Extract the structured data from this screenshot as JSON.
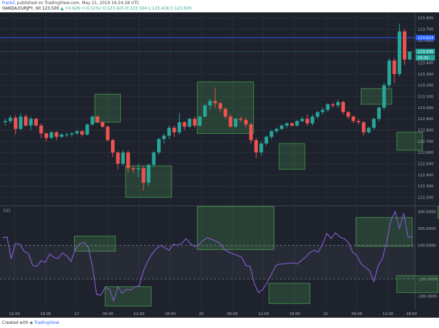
{
  "header": {
    "author": "frankC",
    "published": "published on TradingView.com, May 21, 2019 16:24:28 UTC",
    "symbol": "OANDA:EURJPY, 60",
    "price": "123.500",
    "change": "▲ +0.629 (+0.51%)",
    "ohlc": "O:123.425 H:123.504 L:123.418 C:123.500"
  },
  "footer": {
    "created": "Created with",
    "brand": "TradingView"
  },
  "colors": {
    "bg": "#1e222d",
    "up": "#26a69a",
    "down": "#ef5350",
    "line": "#7e57c2",
    "zone": "#4caf50",
    "hline": "#2962ff",
    "grid": "#2a2e39"
  },
  "chart_data": [
    {
      "type": "candlestick",
      "title": "",
      "ylim": [
        122.13,
        123.85
      ],
      "y_ticks": [
        "123.800",
        "123.700",
        "123.600",
        "123.500",
        "123.400",
        "123.300",
        "123.200",
        "123.100",
        "123.000",
        "122.900",
        "122.800",
        "122.700",
        "122.600",
        "122.500",
        "122.400",
        "122.300",
        "122.200"
      ],
      "price_labels": [
        {
          "text": "123.624",
          "value": 123.624,
          "color": "#2962ff"
        },
        {
          "text": "123.500",
          "value": 123.5,
          "color": "#26a69a"
        },
        {
          "text": "25:31",
          "value": 123.445,
          "color": "#26a69a"
        }
      ],
      "horizontal_line": 123.624,
      "current_price_line": 123.5,
      "candles": [
        [
          122.87,
          122.88,
          122.84,
          122.9
        ],
        [
          122.88,
          122.91,
          122.86,
          122.93
        ],
        [
          122.91,
          122.81,
          122.76,
          122.93
        ],
        [
          122.81,
          122.92,
          122.8,
          122.95
        ],
        [
          122.92,
          122.84,
          122.83,
          122.94
        ],
        [
          122.84,
          122.9,
          122.8,
          122.92
        ],
        [
          122.9,
          122.84,
          122.83,
          122.91
        ],
        [
          122.84,
          122.77,
          122.73,
          122.86
        ],
        [
          122.77,
          122.73,
          122.7,
          122.78
        ],
        [
          122.73,
          122.78,
          122.72,
          122.79
        ],
        [
          122.78,
          122.74,
          122.71,
          122.79
        ],
        [
          122.74,
          122.76,
          122.73,
          122.77
        ],
        [
          122.76,
          122.76,
          122.74,
          122.78
        ],
        [
          122.76,
          122.77,
          122.74,
          122.78
        ],
        [
          122.77,
          122.79,
          122.76,
          122.8
        ],
        [
          122.79,
          122.76,
          122.74,
          122.8
        ],
        [
          122.76,
          122.85,
          122.75,
          122.86
        ],
        [
          122.85,
          122.92,
          122.84,
          122.93
        ],
        [
          122.92,
          122.87,
          122.86,
          122.93
        ],
        [
          122.87,
          122.83,
          122.82,
          122.88
        ],
        [
          122.83,
          122.71,
          122.7,
          122.84
        ],
        [
          122.71,
          122.6,
          122.56,
          122.72
        ],
        [
          122.6,
          122.5,
          122.45,
          122.61
        ],
        [
          122.5,
          122.6,
          122.48,
          122.62
        ],
        [
          122.6,
          122.46,
          122.42,
          122.62
        ],
        [
          122.46,
          122.45,
          122.42,
          122.48
        ],
        [
          122.45,
          122.46,
          122.38,
          122.5
        ],
        [
          122.46,
          122.33,
          122.26,
          122.48
        ],
        [
          122.33,
          122.49,
          122.3,
          122.5
        ],
        [
          122.49,
          122.6,
          122.47,
          122.61
        ],
        [
          122.6,
          122.72,
          122.58,
          122.73
        ],
        [
          122.72,
          122.75,
          122.68,
          122.77
        ],
        [
          122.75,
          122.82,
          122.72,
          122.84
        ],
        [
          122.82,
          122.78,
          122.74,
          122.84
        ],
        [
          122.78,
          122.87,
          122.76,
          122.95
        ],
        [
          122.87,
          122.83,
          122.8,
          122.88
        ],
        [
          122.83,
          122.9,
          122.82,
          122.91
        ],
        [
          122.9,
          122.84,
          122.82,
          122.92
        ],
        [
          122.84,
          122.92,
          122.83,
          122.93
        ],
        [
          122.92,
          123.02,
          122.91,
          123.03
        ],
        [
          123.02,
          123.06,
          122.98,
          123.08
        ],
        [
          123.06,
          123.04,
          123.0,
          123.18
        ],
        [
          123.04,
          122.99,
          122.96,
          123.05
        ],
        [
          122.99,
          122.92,
          122.9,
          123.0
        ],
        [
          122.92,
          122.83,
          122.82,
          122.94
        ],
        [
          122.83,
          122.9,
          122.82,
          122.91
        ],
        [
          122.9,
          122.89,
          122.87,
          122.92
        ],
        [
          122.89,
          122.85,
          122.82,
          122.91
        ],
        [
          122.85,
          122.71,
          122.68,
          122.87
        ],
        [
          122.71,
          122.6,
          122.55,
          122.73
        ],
        [
          122.6,
          122.68,
          122.57,
          122.7
        ],
        [
          122.68,
          122.74,
          122.66,
          122.75
        ],
        [
          122.74,
          122.79,
          122.72,
          122.8
        ],
        [
          122.79,
          122.81,
          122.77,
          122.82
        ],
        [
          122.81,
          122.84,
          122.8,
          122.85
        ],
        [
          122.84,
          122.86,
          122.82,
          122.87
        ],
        [
          122.86,
          122.84,
          122.83,
          122.87
        ],
        [
          122.84,
          122.88,
          122.83,
          122.89
        ],
        [
          122.88,
          122.9,
          122.87,
          122.92
        ],
        [
          122.9,
          122.86,
          122.84,
          122.94
        ],
        [
          122.86,
          122.92,
          122.84,
          122.94
        ],
        [
          122.92,
          122.96,
          122.9,
          122.97
        ],
        [
          122.96,
          122.98,
          122.94,
          123.0
        ],
        [
          122.98,
          123.03,
          122.96,
          123.04
        ],
        [
          123.03,
          123.02,
          123.0,
          123.05
        ],
        [
          123.02,
          123.05,
          123.0,
          123.07
        ],
        [
          123.05,
          122.96,
          122.94,
          123.06
        ],
        [
          122.96,
          122.92,
          122.9,
          122.97
        ],
        [
          122.92,
          122.88,
          122.86,
          122.93
        ],
        [
          122.88,
          122.87,
          122.85,
          122.9
        ],
        [
          122.87,
          122.78,
          122.75,
          122.88
        ],
        [
          122.78,
          122.82,
          122.77,
          122.83
        ],
        [
          122.82,
          122.9,
          122.8,
          122.91
        ],
        [
          122.9,
          123.0,
          122.88,
          123.01
        ],
        [
          123.0,
          123.2,
          122.98,
          123.22
        ],
        [
          123.2,
          123.42,
          123.18,
          123.44
        ],
        [
          123.42,
          123.3,
          123.22,
          123.44
        ],
        [
          123.3,
          123.68,
          123.28,
          123.75
        ],
        [
          123.68,
          123.43,
          123.38,
          123.7
        ],
        [
          123.43,
          123.5,
          123.42,
          123.5
        ]
      ],
      "zones": [
        {
          "i0": 18,
          "i1": 22,
          "y0": 122.87,
          "y1": 123.12
        },
        {
          "i0": 24,
          "i1": 32,
          "y0": 122.2,
          "y1": 122.48
        },
        {
          "i0": 38,
          "i1": 48,
          "y0": 122.77,
          "y1": 123.23
        },
        {
          "i0": 54,
          "i1": 58,
          "y0": 122.45,
          "y1": 122.68
        },
        {
          "i0": 70,
          "i1": 75,
          "y0": 123.03,
          "y1": 123.17
        },
        {
          "i0": 77,
          "i1": 81,
          "y0": 122.62,
          "y1": 122.78
        },
        {
          "i0": 86,
          "i1": 91,
          "y0": 123.52,
          "y1": 123.73
        }
      ]
    },
    {
      "type": "line",
      "title": "CCI",
      "ylim": [
        -280,
        330
      ],
      "y_ticks": [
        "300.0000",
        "200.0000",
        "100.0000",
        "-100.0000",
        "-200.0000"
      ],
      "bands": [
        100,
        -100
      ],
      "series": [
        {
          "values": [
            145,
            150,
            20,
            112,
            107,
            65,
            52,
            -18,
            -25,
            10,
            -2,
            50,
            28,
            22,
            55,
            38,
            5,
            75,
            108,
            118,
            90,
            -20,
            -190,
            -195,
            -150,
            -160,
            -230,
            -145,
            -185,
            -160,
            -165,
            -145,
            -140,
            -50,
            5,
            50,
            80,
            100,
            85,
            70,
            108,
            100,
            112,
            140,
            110,
            92,
            105,
            130,
            145,
            135,
            125,
            110,
            75,
            60,
            50,
            40,
            30,
            -20,
            -25,
            -130,
            -180,
            -160,
            -120,
            -70,
            -20,
            -10,
            -10,
            -5,
            -5,
            -10,
            10,
            30,
            58,
            70,
            60,
            110,
            170,
            140,
            175,
            150,
            140,
            120,
            60,
            40,
            -10,
            -30,
            -50,
            -115,
            -20,
            20,
            120,
            250,
            300,
            200,
            290,
            150,
            148
          ]
        }
      ],
      "zones": [
        {
          "i0": 14,
          "i1": 21,
          "y0": 65,
          "y1": 155
        },
        {
          "i0": 20,
          "i1": 28,
          "y0": -260,
          "y1": -145
        },
        {
          "i0": 38,
          "i1": 52,
          "y0": 75,
          "y1": 330
        },
        {
          "i0": 52,
          "i1": 59,
          "y0": -245,
          "y1": -125
        },
        {
          "i0": 69,
          "i1": 79,
          "y0": 95,
          "y1": 265
        },
        {
          "i0": 77,
          "i1": 84,
          "y0": -180,
          "y1": -80
        },
        {
          "i0": 85,
          "i1": 91,
          "y0": 260,
          "y1": 335
        }
      ]
    }
  ],
  "x_ticks": [
    {
      "label": "12:00",
      "pos": 0.035
    },
    {
      "label": "18:00",
      "pos": 0.11
    },
    {
      "label": "17",
      "pos": 0.185
    },
    {
      "label": "06:00",
      "pos": 0.26
    },
    {
      "label": "12:00",
      "pos": 0.335
    },
    {
      "label": "18:00",
      "pos": 0.41
    },
    {
      "label": "20",
      "pos": 0.485
    },
    {
      "label": "06:00",
      "pos": 0.56
    },
    {
      "label": "12:00",
      "pos": 0.635
    },
    {
      "label": "18:00",
      "pos": 0.71
    },
    {
      "label": "21",
      "pos": 0.785
    },
    {
      "label": "06:00",
      "pos": 0.86
    },
    {
      "label": "12:00",
      "pos": 0.935
    },
    {
      "label": "18:00",
      "pos": 1.005
    }
  ]
}
